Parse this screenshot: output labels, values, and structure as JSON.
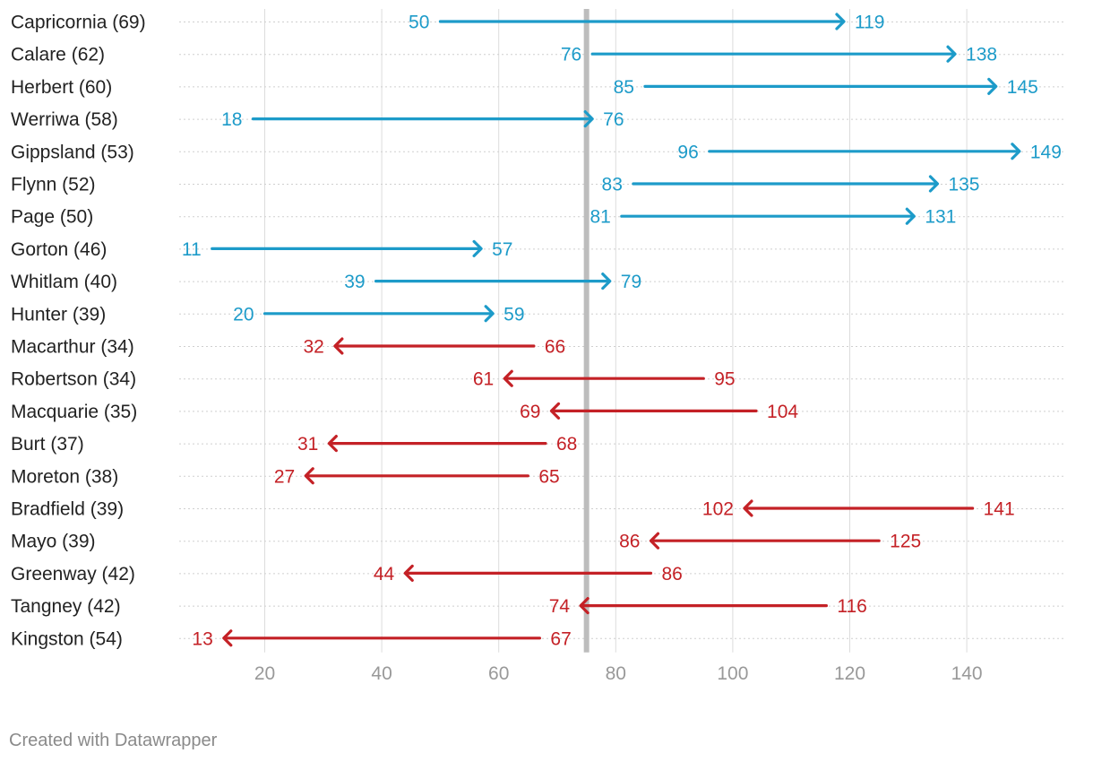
{
  "chart_data": {
    "type": "arrow",
    "xlim": [
      5,
      155
    ],
    "ticks": [
      20,
      40,
      60,
      80,
      100,
      120,
      140
    ],
    "reference_line": 75,
    "colors": {
      "increase": "#1d9bc9",
      "decrease": "#c42126",
      "grid": "#dcdcdc",
      "tick_label": "#999999",
      "reference": "#bdbdbd",
      "row_label": "#222222"
    },
    "rows": [
      {
        "label": "Capricornia (69)",
        "from": 50,
        "to": 119
      },
      {
        "label": "Calare (62)",
        "from": 76,
        "to": 138
      },
      {
        "label": "Herbert (60)",
        "from": 85,
        "to": 145
      },
      {
        "label": "Werriwa (58)",
        "from": 18,
        "to": 76
      },
      {
        "label": "Gippsland (53)",
        "from": 96,
        "to": 149
      },
      {
        "label": "Flynn (52)",
        "from": 83,
        "to": 135
      },
      {
        "label": "Page (50)",
        "from": 81,
        "to": 131
      },
      {
        "label": "Gorton (46)",
        "from": 11,
        "to": 57
      },
      {
        "label": "Whitlam (40)",
        "from": 39,
        "to": 79
      },
      {
        "label": "Hunter (39)",
        "from": 20,
        "to": 59
      },
      {
        "label": "Macarthur (34)",
        "from": 66,
        "to": 32
      },
      {
        "label": "Robertson (34)",
        "from": 95,
        "to": 61
      },
      {
        "label": "Macquarie (35)",
        "from": 104,
        "to": 69
      },
      {
        "label": "Burt (37)",
        "from": 68,
        "to": 31
      },
      {
        "label": "Moreton (38)",
        "from": 65,
        "to": 27
      },
      {
        "label": "Bradfield (39)",
        "from": 141,
        "to": 102
      },
      {
        "label": "Mayo (39)",
        "from": 125,
        "to": 86
      },
      {
        "label": "Greenway (42)",
        "from": 86,
        "to": 44
      },
      {
        "label": "Tangney (42)",
        "from": 116,
        "to": 74
      },
      {
        "label": "Kingston (54)",
        "from": 67,
        "to": 13
      }
    ]
  },
  "footer": "Created with Datawrapper"
}
